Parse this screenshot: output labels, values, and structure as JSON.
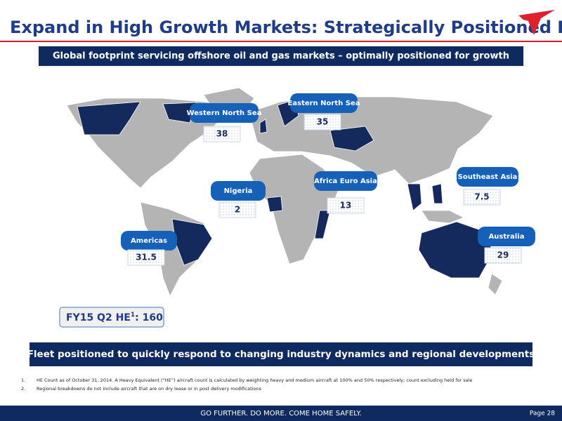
{
  "header": {
    "title": "Expand in High Growth Markets: Strategically Positioned Fleet"
  },
  "subtitle": "Global footprint servicing offshore oil and gas markets – optimally positioned for growth",
  "regions": [
    {
      "name": "Western North Sea",
      "value": 38
    },
    {
      "name": "Eastern North Sea",
      "value": 35
    },
    {
      "name": "Nigeria",
      "value": 2
    },
    {
      "name": "Africa Euro Asia",
      "value": 13
    },
    {
      "name": "Southeast Asia",
      "value": 7.5
    },
    {
      "name": "Americas",
      "value": 31.5
    },
    {
      "name": "Australia",
      "value": 29
    }
  ],
  "fleet_total": {
    "label": "FY15 Q2 HE",
    "note": "1",
    "value": ": 160"
  },
  "banner": "Fleet positioned to quickly respond to changing industry dynamics and regional developments",
  "footnotes": [
    {
      "number": "1.",
      "text": "HE Count as of October 31, 2014.  A Heavy Equivalent (“HE”) aircraft count is calculated by weighting heavy and medium aircraft at 100% and 50% respectively; count excluding held for sale"
    },
    {
      "number": "2.",
      "text": "Regional breakdowns do not include aircraft that are on dry lease or in post delivery modifications"
    }
  ],
  "footer": {
    "tagline": "GO FURTHER. DO MORE. COME HOME SAFELY.",
    "page": "Page 28"
  }
}
